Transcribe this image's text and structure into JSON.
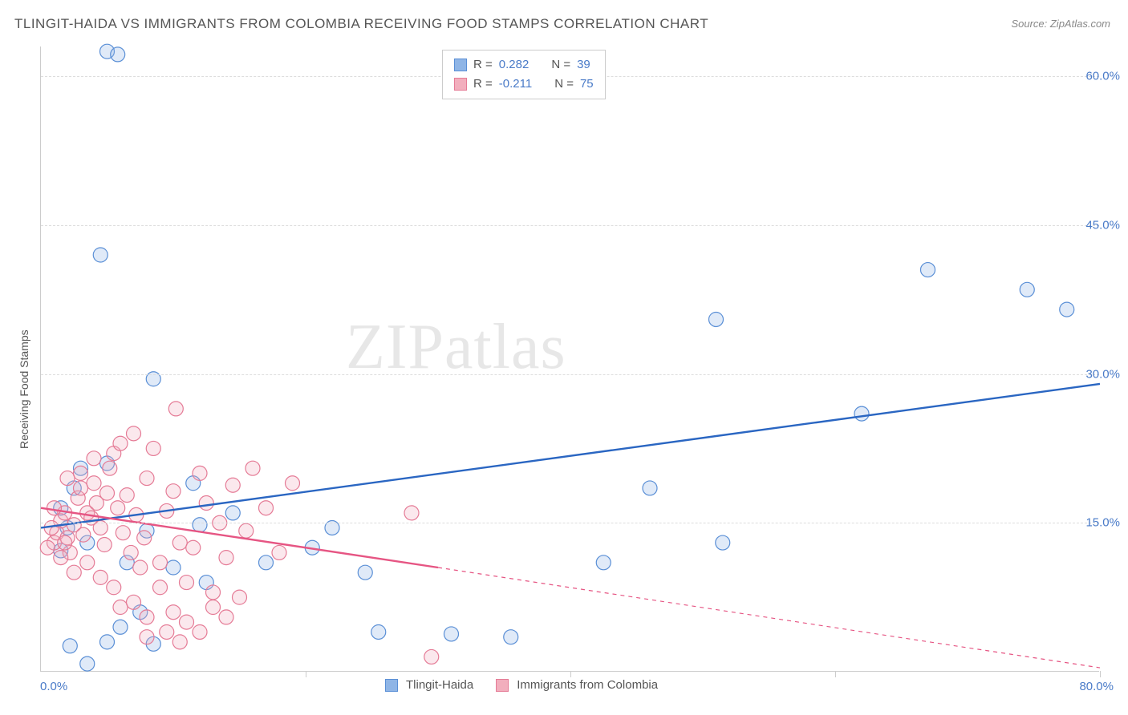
{
  "title": "TLINGIT-HAIDA VS IMMIGRANTS FROM COLOMBIA RECEIVING FOOD STAMPS CORRELATION CHART",
  "source": "Source: ZipAtlas.com",
  "watermark": "ZIPatlas",
  "y_axis_label": "Receiving Food Stamps",
  "plot": {
    "x_min": 0,
    "x_max": 80,
    "y_min": 0,
    "y_max": 63,
    "background_color": "#ffffff",
    "grid_color": "#dddddd",
    "axis_color": "#cccccc",
    "y_gridlines": [
      15,
      30,
      45,
      60
    ],
    "y_tick_labels": [
      "15.0%",
      "30.0%",
      "45.0%",
      "60.0%"
    ],
    "y_tick_label_color": "#4a7bc8",
    "x_ticks": [
      20,
      40,
      60,
      80
    ],
    "x_start_label": "0.0%",
    "x_end_label": "80.0%",
    "x_label_color": "#4a7bc8",
    "point_radius": 9,
    "point_stroke_width": 1.2,
    "point_fill_opacity": 0.28,
    "line_width": 2.4
  },
  "series": [
    {
      "id": "tlingit",
      "label": "Tlingit-Haida",
      "fill_color": "#8fb5e6",
      "stroke_color": "#5a8fd6",
      "line_color": "#2a66c2",
      "R": "0.282",
      "N": "39",
      "trend_solid": {
        "x1": 0,
        "y1": 14.5,
        "x2": 80,
        "y2": 29.0
      },
      "trend_dashed": null,
      "points": [
        [
          5.0,
          62.5
        ],
        [
          5.8,
          62.2
        ],
        [
          4.5,
          42.0
        ],
        [
          8.5,
          29.5
        ],
        [
          2.5,
          18.5
        ],
        [
          1.5,
          16.5
        ],
        [
          5.0,
          21.0
        ],
        [
          3.0,
          20.5
        ],
        [
          11.5,
          19.0
        ],
        [
          14.5,
          16.0
        ],
        [
          12.0,
          14.8
        ],
        [
          8.0,
          14.2
        ],
        [
          2.0,
          14.5
        ],
        [
          3.5,
          13.0
        ],
        [
          6.5,
          11.0
        ],
        [
          1.5,
          12.2
        ],
        [
          10.0,
          10.5
        ],
        [
          12.5,
          9.0
        ],
        [
          22.0,
          14.5
        ],
        [
          17.0,
          11.0
        ],
        [
          20.5,
          12.5
        ],
        [
          24.5,
          10.0
        ],
        [
          25.5,
          4.0
        ],
        [
          31.0,
          3.8
        ],
        [
          35.5,
          3.5
        ],
        [
          7.5,
          6.0
        ],
        [
          6.0,
          4.5
        ],
        [
          5.0,
          3.0
        ],
        [
          8.5,
          2.8
        ],
        [
          2.2,
          2.6
        ],
        [
          3.5,
          0.8
        ],
        [
          42.5,
          11.0
        ],
        [
          46.0,
          18.5
        ],
        [
          51.5,
          13.0
        ],
        [
          62.0,
          26.0
        ],
        [
          67.0,
          40.5
        ],
        [
          74.5,
          38.5
        ],
        [
          77.5,
          36.5
        ],
        [
          51.0,
          35.5
        ]
      ]
    },
    {
      "id": "colombia",
      "label": "Immigrants from Colombia",
      "fill_color": "#f2aebd",
      "stroke_color": "#e57b96",
      "line_color": "#e65583",
      "R": "-0.211",
      "N": "75",
      "trend_solid": {
        "x1": 0,
        "y1": 16.5,
        "x2": 30,
        "y2": 10.5
      },
      "trend_dashed": {
        "x1": 30,
        "y1": 10.5,
        "x2": 80,
        "y2": 0.4
      },
      "points": [
        [
          1.0,
          13.0
        ],
        [
          1.2,
          14.0
        ],
        [
          1.5,
          15.2
        ],
        [
          1.8,
          16.0
        ],
        [
          2.0,
          13.5
        ],
        [
          2.2,
          12.0
        ],
        [
          2.5,
          14.8
        ],
        [
          2.8,
          17.5
        ],
        [
          3.0,
          18.5
        ],
        [
          3.2,
          13.8
        ],
        [
          3.5,
          16.0
        ],
        [
          3.8,
          15.5
        ],
        [
          4.0,
          19.0
        ],
        [
          4.2,
          17.0
        ],
        [
          4.5,
          14.5
        ],
        [
          4.8,
          12.8
        ],
        [
          5.0,
          18.0
        ],
        [
          5.2,
          20.5
        ],
        [
          5.5,
          22.0
        ],
        [
          5.8,
          16.5
        ],
        [
          6.0,
          23.0
        ],
        [
          6.2,
          14.0
        ],
        [
          6.5,
          17.8
        ],
        [
          6.8,
          12.0
        ],
        [
          7.0,
          24.0
        ],
        [
          7.2,
          15.8
        ],
        [
          7.5,
          10.5
        ],
        [
          7.8,
          13.5
        ],
        [
          8.0,
          19.5
        ],
        [
          8.5,
          22.5
        ],
        [
          9.0,
          11.0
        ],
        [
          9.5,
          16.2
        ],
        [
          10.0,
          18.2
        ],
        [
          10.2,
          26.5
        ],
        [
          10.5,
          13.0
        ],
        [
          11.0,
          9.0
        ],
        [
          11.5,
          12.5
        ],
        [
          12.0,
          20.0
        ],
        [
          12.5,
          17.0
        ],
        [
          13.0,
          8.0
        ],
        [
          13.5,
          15.0
        ],
        [
          14.0,
          11.5
        ],
        [
          14.5,
          18.8
        ],
        [
          15.0,
          7.5
        ],
        [
          15.5,
          14.2
        ],
        [
          16.0,
          20.5
        ],
        [
          17.0,
          16.5
        ],
        [
          18.0,
          12.0
        ],
        [
          19.0,
          19.0
        ],
        [
          6.0,
          6.5
        ],
        [
          7.0,
          7.0
        ],
        [
          8.0,
          5.5
        ],
        [
          9.0,
          8.5
        ],
        [
          10.0,
          6.0
        ],
        [
          11.0,
          5.0
        ],
        [
          12.0,
          4.0
        ],
        [
          13.0,
          6.5
        ],
        [
          14.0,
          5.5
        ],
        [
          2.0,
          19.5
        ],
        [
          3.0,
          20.0
        ],
        [
          4.0,
          21.5
        ],
        [
          1.5,
          11.5
        ],
        [
          2.5,
          10.0
        ],
        [
          3.5,
          11.0
        ],
        [
          4.5,
          9.5
        ],
        [
          5.5,
          8.5
        ],
        [
          1.0,
          16.5
        ],
        [
          1.8,
          13.0
        ],
        [
          0.8,
          14.5
        ],
        [
          0.5,
          12.5
        ],
        [
          28.0,
          16.0
        ],
        [
          29.5,
          1.5
        ],
        [
          9.5,
          4.0
        ],
        [
          8.0,
          3.5
        ],
        [
          10.5,
          3.0
        ]
      ]
    }
  ],
  "legend_top": {
    "rows": [
      {
        "swatch_fill": "#8fb5e6",
        "swatch_stroke": "#5a8fd6",
        "R_label": "R  =",
        "R_val": "0.282",
        "N_label": "N  =",
        "N_val": "39"
      },
      {
        "swatch_fill": "#f2aebd",
        "swatch_stroke": "#e57b96",
        "R_label": "R  =",
        "R_val": "-0.211",
        "N_label": "N  =",
        "N_val": "75"
      }
    ]
  },
  "legend_bottom": {
    "items": [
      {
        "swatch_fill": "#8fb5e6",
        "swatch_stroke": "#5a8fd6",
        "label": "Tlingit-Haida"
      },
      {
        "swatch_fill": "#f2aebd",
        "swatch_stroke": "#e57b96",
        "label": "Immigrants from Colombia"
      }
    ]
  }
}
